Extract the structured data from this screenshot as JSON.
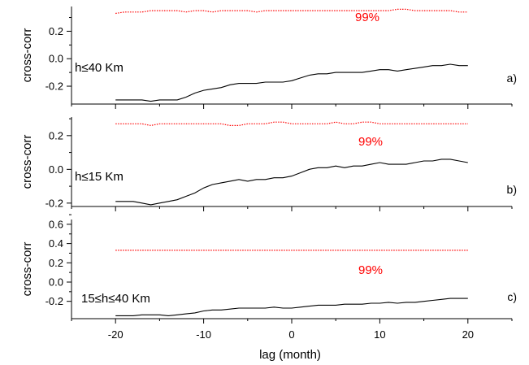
{
  "figure": {
    "xlabel": "lag (month)"
  },
  "chart_data": [
    {
      "type": "line",
      "panel_label": "a)",
      "annotation": "h≤40 Km",
      "ylabel": "cross-corr",
      "xlim": [
        -25,
        25
      ],
      "ylim": [
        -0.33,
        0.38
      ],
      "xticks": [
        -20,
        -10,
        0,
        10,
        20
      ],
      "yticks": [
        -0.2,
        0.0,
        0.2
      ],
      "ytick_labels": [
        "-0.2",
        "0.0",
        "0.2"
      ],
      "significance_label": "99%",
      "colors": {
        "series": "#000000",
        "significance": "#ff0000"
      },
      "x": [
        -20,
        -19,
        -18,
        -17,
        -16,
        -15,
        -14,
        -13,
        -12,
        -11,
        -10,
        -9,
        -8,
        -7,
        -6,
        -5,
        -4,
        -3,
        -2,
        -1,
        0,
        1,
        2,
        3,
        4,
        5,
        6,
        7,
        8,
        9,
        10,
        11,
        12,
        13,
        14,
        15,
        16,
        17,
        18,
        19,
        20
      ],
      "series": [
        {
          "values": [
            -0.3,
            -0.3,
            -0.3,
            -0.3,
            -0.31,
            -0.3,
            -0.3,
            -0.3,
            -0.28,
            -0.25,
            -0.23,
            -0.22,
            -0.21,
            -0.19,
            -0.18,
            -0.18,
            -0.18,
            -0.17,
            -0.17,
            -0.17,
            -0.16,
            -0.14,
            -0.12,
            -0.11,
            -0.11,
            -0.1,
            -0.1,
            -0.1,
            -0.1,
            -0.09,
            -0.08,
            -0.08,
            -0.09,
            -0.08,
            -0.07,
            -0.06,
            -0.05,
            -0.05,
            -0.04,
            -0.05,
            -0.05
          ]
        },
        {
          "style": "dotted",
          "values": [
            0.33,
            0.34,
            0.34,
            0.34,
            0.35,
            0.35,
            0.35,
            0.35,
            0.34,
            0.35,
            0.35,
            0.34,
            0.35,
            0.35,
            0.35,
            0.35,
            0.34,
            0.35,
            0.35,
            0.35,
            0.35,
            0.35,
            0.35,
            0.35,
            0.35,
            0.35,
            0.35,
            0.35,
            0.35,
            0.35,
            0.35,
            0.35,
            0.36,
            0.36,
            0.35,
            0.35,
            0.35,
            0.35,
            0.35,
            0.34,
            0.34
          ]
        }
      ]
    },
    {
      "type": "line",
      "panel_label": "b)",
      "annotation": "h≤15 Km",
      "ylabel": "cross-corr",
      "xlim": [
        -25,
        25
      ],
      "ylim": [
        -0.22,
        0.31
      ],
      "xticks": [
        -20,
        -10,
        0,
        10,
        20
      ],
      "yticks": [
        -0.2,
        0.0,
        0.2
      ],
      "ytick_labels": [
        "-0.2",
        "0.0",
        "0.2"
      ],
      "significance_label": "99%",
      "colors": {
        "series": "#000000",
        "significance": "#ff0000"
      },
      "x": [
        -20,
        -19,
        -18,
        -17,
        -16,
        -15,
        -14,
        -13,
        -12,
        -11,
        -10,
        -9,
        -8,
        -7,
        -6,
        -5,
        -4,
        -3,
        -2,
        -1,
        0,
        1,
        2,
        3,
        4,
        5,
        6,
        7,
        8,
        9,
        10,
        11,
        12,
        13,
        14,
        15,
        16,
        17,
        18,
        19,
        20
      ],
      "series": [
        {
          "values": [
            -0.19,
            -0.19,
            -0.19,
            -0.2,
            -0.21,
            -0.2,
            -0.19,
            -0.18,
            -0.16,
            -0.14,
            -0.11,
            -0.09,
            -0.08,
            -0.07,
            -0.06,
            -0.07,
            -0.06,
            -0.06,
            -0.05,
            -0.05,
            -0.04,
            -0.02,
            0.0,
            0.01,
            0.01,
            0.02,
            0.01,
            0.02,
            0.02,
            0.03,
            0.04,
            0.03,
            0.03,
            0.03,
            0.04,
            0.05,
            0.05,
            0.06,
            0.06,
            0.05,
            0.04
          ]
        },
        {
          "style": "dotted",
          "values": [
            0.27,
            0.27,
            0.27,
            0.27,
            0.26,
            0.27,
            0.27,
            0.27,
            0.27,
            0.27,
            0.27,
            0.27,
            0.27,
            0.26,
            0.26,
            0.27,
            0.27,
            0.27,
            0.28,
            0.28,
            0.27,
            0.27,
            0.27,
            0.27,
            0.27,
            0.28,
            0.27,
            0.27,
            0.28,
            0.28,
            0.27,
            0.27,
            0.27,
            0.27,
            0.27,
            0.27,
            0.27,
            0.27,
            0.27,
            0.27,
            0.27
          ]
        }
      ]
    },
    {
      "type": "line",
      "panel_label": "c)",
      "annotation": "15≤h≤40 Km",
      "ylabel": "cross-corr",
      "xlim": [
        -25,
        25
      ],
      "ylim": [
        -0.38,
        0.65
      ],
      "xticks": [
        -20,
        -10,
        0,
        10,
        20
      ],
      "xtick_labels": [
        "-20",
        "-10",
        "0",
        "10",
        "20"
      ],
      "yticks": [
        -0.2,
        0.0,
        0.2,
        0.4,
        0.6
      ],
      "ytick_labels": [
        "-0.2",
        "0.0",
        "0.2",
        "0.4",
        "0.6"
      ],
      "significance_label": "99%",
      "colors": {
        "series": "#000000",
        "significance": "#ff0000"
      },
      "x": [
        -20,
        -19,
        -18,
        -17,
        -16,
        -15,
        -14,
        -13,
        -12,
        -11,
        -10,
        -9,
        -8,
        -7,
        -6,
        -5,
        -4,
        -3,
        -2,
        -1,
        0,
        1,
        2,
        3,
        4,
        5,
        6,
        7,
        8,
        9,
        10,
        11,
        12,
        13,
        14,
        15,
        16,
        17,
        18,
        19,
        20
      ],
      "series": [
        {
          "values": [
            -0.35,
            -0.35,
            -0.35,
            -0.34,
            -0.34,
            -0.34,
            -0.35,
            -0.34,
            -0.33,
            -0.32,
            -0.3,
            -0.29,
            -0.29,
            -0.28,
            -0.27,
            -0.27,
            -0.27,
            -0.27,
            -0.26,
            -0.27,
            -0.27,
            -0.26,
            -0.25,
            -0.24,
            -0.24,
            -0.24,
            -0.23,
            -0.23,
            -0.23,
            -0.22,
            -0.22,
            -0.21,
            -0.22,
            -0.21,
            -0.21,
            -0.2,
            -0.19,
            -0.18,
            -0.17,
            -0.17,
            -0.17
          ]
        },
        {
          "style": "dotted",
          "values": [
            0.33,
            0.33,
            0.33,
            0.33,
            0.33,
            0.33,
            0.33,
            0.33,
            0.33,
            0.33,
            0.33,
            0.33,
            0.33,
            0.33,
            0.33,
            0.33,
            0.33,
            0.33,
            0.33,
            0.33,
            0.33,
            0.33,
            0.33,
            0.33,
            0.33,
            0.33,
            0.33,
            0.33,
            0.33,
            0.33,
            0.33,
            0.33,
            0.33,
            0.33,
            0.33,
            0.33,
            0.33,
            0.33,
            0.33,
            0.33,
            0.33
          ]
        }
      ]
    }
  ]
}
